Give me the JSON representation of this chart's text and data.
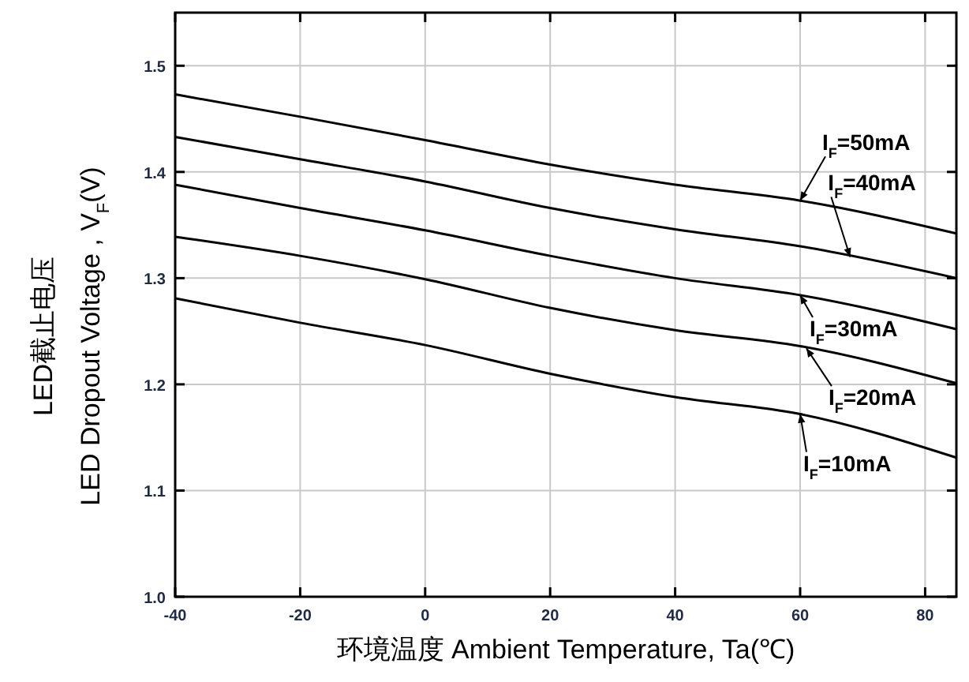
{
  "chart_data": {
    "type": "line",
    "xlabel": "环境温度 Ambient Temperature, Ta(℃)",
    "ylabel": "LED截止电压\nLED Dropout Voltage , V$_{F}$(V)",
    "x": [
      -40,
      -20,
      0,
      20,
      40,
      60,
      85
    ],
    "series": [
      {
        "color": "#000000",
        "values": [
          1.473,
          1.452,
          1.43,
          1.407,
          1.388,
          1.373,
          1.342
        ]
      },
      {
        "color": "#000000",
        "values": [
          1.433,
          1.412,
          1.391,
          1.366,
          1.346,
          1.33,
          1.3
        ]
      },
      {
        "color": "#000000",
        "values": [
          1.388,
          1.366,
          1.345,
          1.321,
          1.3,
          1.284,
          1.252
        ]
      },
      {
        "color": "#000000",
        "values": [
          1.339,
          1.321,
          1.299,
          1.272,
          1.251,
          1.236,
          1.201
        ]
      },
      {
        "color": "#000000",
        "values": [
          1.281,
          1.258,
          1.237,
          1.21,
          1.188,
          1.172,
          1.131
        ]
      }
    ],
    "annotations": [
      {
        "text": "I$_{F}$=50mA",
        "x": 60,
        "y": 1.373
      },
      {
        "text": "I$_{F}$=40mA",
        "x": 68,
        "y": 1.32
      },
      {
        "text": "I$_{F}$=30mA",
        "x": 60,
        "y": 1.284
      },
      {
        "text": "I$_{F}$=20mA",
        "x": 61,
        "y": 1.234
      },
      {
        "text": "I$_{F}$=10mA",
        "x": 60,
        "y": 1.172
      }
    ],
    "xlim": [
      -40,
      85
    ],
    "ylim": [
      1.0,
      1.55
    ],
    "xticks": [
      -40,
      -20,
      0,
      20,
      40,
      60,
      80
    ],
    "yticks": [
      {
        "value": 1.0,
        "label": "1.0"
      },
      1.1,
      1.2,
      1.3,
      1.4,
      1.5
    ],
    "grid": true,
    "marker": "none",
    "line_style": "solid"
  }
}
